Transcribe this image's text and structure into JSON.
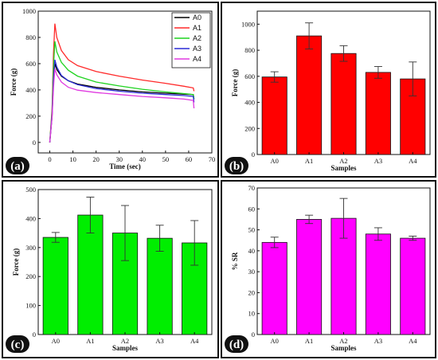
{
  "chart_data": [
    {
      "panel_label": "(a)",
      "type": "line",
      "xlabel": "Time (sec)",
      "ylabel": "Force (g)",
      "xlim": [
        -5,
        70
      ],
      "ylim": [
        -80,
        1000
      ],
      "xticks": [
        0,
        10,
        20,
        30,
        40,
        50,
        60,
        70
      ],
      "yticks": [
        0,
        200,
        400,
        600,
        800,
        1000
      ],
      "legend_position": "top-right",
      "series": [
        {
          "name": "A0",
          "color": "#000000",
          "points": [
            [
              0,
              0
            ],
            [
              1,
              200
            ],
            [
              1.6,
              480
            ],
            [
              2.2,
              600
            ],
            [
              3,
              555
            ],
            [
              5,
              505
            ],
            [
              8,
              470
            ],
            [
              12,
              445
            ],
            [
              20,
              420
            ],
            [
              30,
              400
            ],
            [
              40,
              385
            ],
            [
              50,
              375
            ],
            [
              58,
              368
            ],
            [
              62,
              365
            ],
            [
              62.3,
              330
            ]
          ]
        },
        {
          "name": "A1",
          "color": "#ff2a2a",
          "points": [
            [
              0,
              0
            ],
            [
              1,
              260
            ],
            [
              1.6,
              680
            ],
            [
              2.2,
              905
            ],
            [
              3,
              800
            ],
            [
              5,
              700
            ],
            [
              8,
              630
            ],
            [
              12,
              585
            ],
            [
              20,
              540
            ],
            [
              30,
              505
            ],
            [
              40,
              475
            ],
            [
              50,
              450
            ],
            [
              58,
              428
            ],
            [
              62,
              415
            ],
            [
              62.3,
              390
            ]
          ]
        },
        {
          "name": "A2",
          "color": "#1fd31f",
          "points": [
            [
              0,
              0
            ],
            [
              1,
              240
            ],
            [
              1.6,
              580
            ],
            [
              2.2,
              770
            ],
            [
              3,
              690
            ],
            [
              5,
              610
            ],
            [
              8,
              550
            ],
            [
              12,
              505
            ],
            [
              20,
              460
            ],
            [
              30,
              430
            ],
            [
              40,
              405
            ],
            [
              50,
              385
            ],
            [
              58,
              372
            ],
            [
              62,
              365
            ],
            [
              62.3,
              330
            ]
          ]
        },
        {
          "name": "A3",
          "color": "#2a2ad6",
          "points": [
            [
              0,
              0
            ],
            [
              1,
              210
            ],
            [
              1.6,
              480
            ],
            [
              2.2,
              630
            ],
            [
              3,
              575
            ],
            [
              5,
              510
            ],
            [
              8,
              470
            ],
            [
              12,
              440
            ],
            [
              20,
              410
            ],
            [
              30,
              390
            ],
            [
              40,
              375
            ],
            [
              50,
              365
            ],
            [
              58,
              357
            ],
            [
              62,
              350
            ],
            [
              62.3,
              305
            ]
          ]
        },
        {
          "name": "A4",
          "color": "#e03ae0",
          "points": [
            [
              0,
              0
            ],
            [
              1,
              190
            ],
            [
              1.6,
              420
            ],
            [
              2.2,
              560
            ],
            [
              3,
              515
            ],
            [
              5,
              460
            ],
            [
              8,
              420
            ],
            [
              12,
              398
            ],
            [
              20,
              380
            ],
            [
              30,
              365
            ],
            [
              40,
              350
            ],
            [
              50,
              340
            ],
            [
              58,
              330
            ],
            [
              62,
              320
            ],
            [
              62.3,
              260
            ]
          ]
        }
      ]
    },
    {
      "panel_label": "(b)",
      "type": "bar",
      "xlabel": "Samples",
      "ylabel": "Force (g)",
      "categories": [
        "A0",
        "A1",
        "A2",
        "A3",
        "A4"
      ],
      "values": [
        595,
        910,
        775,
        630,
        580
      ],
      "errors": [
        40,
        100,
        60,
        45,
        130
      ],
      "ylim": [
        0,
        1100
      ],
      "yticks": [
        0,
        200,
        400,
        600,
        800,
        1000
      ],
      "color": "#ff0000"
    },
    {
      "panel_label": "(c)",
      "type": "bar",
      "xlabel": "Samples",
      "ylabel": "Force (g)",
      "categories": [
        "A0",
        "A1",
        "A2",
        "A3",
        "A4"
      ],
      "values": [
        335,
        412,
        350,
        332,
        316
      ],
      "errors": [
        17,
        62,
        95,
        45,
        77
      ],
      "ylim": [
        0,
        500
      ],
      "yticks": [
        0,
        100,
        200,
        300,
        400,
        500
      ],
      "color": "#00ee00"
    },
    {
      "panel_label": "(d)",
      "type": "bar",
      "xlabel": "Samples",
      "ylabel": "% SR",
      "categories": [
        "A0",
        "A1",
        "A2",
        "A3",
        "A4"
      ],
      "values": [
        44,
        55,
        55.5,
        48,
        46
      ],
      "errors": [
        2.5,
        2,
        9.5,
        3,
        1
      ],
      "ylim": [
        0,
        70
      ],
      "yticks": [
        0,
        10,
        20,
        30,
        40,
        50,
        60,
        70
      ],
      "color": "#ff00ff"
    }
  ]
}
